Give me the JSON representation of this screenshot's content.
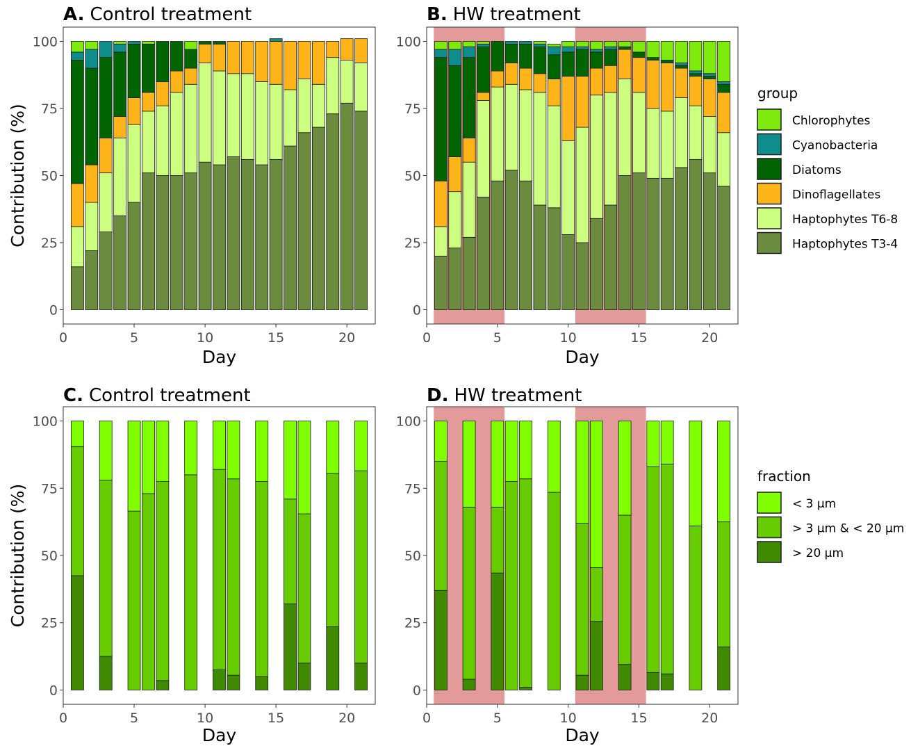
{
  "colors": {
    "chlorophytes": "#7fea0e",
    "cyanobacteria": "#0f8d8d",
    "diatoms": "#006400",
    "dinoflagellates": "#ffb519",
    "haptophytes_t68": "#ccff80",
    "haptophytes_t34": "#6b8b3f",
    "frac_lt3": "#80ff00",
    "frac_3_20": "#66cc00",
    "frac_gt20": "#3f8a00",
    "heatwave_shade": "#e29a9a"
  },
  "legends": {
    "group": {
      "title": "group",
      "items": [
        {
          "label": "Chlorophytes",
          "color": "#7fea0e"
        },
        {
          "label": "Cyanobacteria",
          "color": "#0f8d8d"
        },
        {
          "label": "Diatoms",
          "color": "#006400"
        },
        {
          "label": "Dinoflagellates",
          "color": "#ffb519"
        },
        {
          "label": "Haptophytes T6-8",
          "color": "#ccff80"
        },
        {
          "label": "Haptophytes T3-4",
          "color": "#6b8b3f"
        }
      ]
    },
    "fraction": {
      "title": "fraction",
      "items": [
        {
          "label": "< 3 µm",
          "color": "#80ff00"
        },
        {
          "label": "> 3 µm & < 20 µm",
          "color": "#66cc00"
        },
        {
          "label": "> 20 µm",
          "color": "#3f8a00"
        }
      ]
    }
  },
  "chart_data": [
    {
      "type": "bar",
      "stacked": true,
      "panel_letter": "A.",
      "title": "Control treatment",
      "xlabel": "Day",
      "ylabel": "Contribution (%)",
      "xlim": [
        0,
        22
      ],
      "ylim": [
        0,
        100
      ],
      "x_ticks": [
        0,
        5,
        10,
        15,
        20
      ],
      "y_ticks": [
        0,
        25,
        50,
        75,
        100
      ],
      "x": [
        1,
        2,
        3,
        4,
        5,
        6,
        7,
        8,
        9,
        10,
        11,
        12,
        13,
        14,
        15,
        16,
        17,
        18,
        19,
        20,
        21
      ],
      "shaded_periods": [],
      "series": [
        {
          "name": "Haptophytes T3-4",
          "color": "#6b8b3f",
          "values": [
            16,
            22,
            29,
            35,
            40,
            51,
            50,
            50,
            51,
            55,
            54,
            57,
            56,
            54,
            56,
            61,
            66,
            68,
            73,
            77,
            74
          ]
        },
        {
          "name": "Haptophytes T6-8",
          "color": "#ccff80",
          "values": [
            15,
            18,
            22,
            29,
            29,
            23,
            26,
            31,
            33,
            37,
            35,
            31,
            32,
            31,
            28,
            21,
            20,
            16,
            21,
            16,
            18
          ]
        },
        {
          "name": "Dinoflagellates",
          "color": "#ffb519",
          "values": [
            16,
            14,
            13,
            8,
            10,
            7,
            9,
            8,
            6,
            7,
            10,
            12,
            12,
            15,
            16,
            18,
            14,
            16,
            6,
            8,
            9
          ]
        },
        {
          "name": "Diatoms",
          "color": "#006400",
          "values": [
            46,
            36,
            30,
            24,
            20,
            18,
            15,
            11,
            7,
            1,
            1,
            0,
            0,
            0,
            0,
            0,
            0,
            0,
            0,
            0,
            0
          ]
        },
        {
          "name": "Cyanobacteria",
          "color": "#0f8d8d",
          "values": [
            3,
            7,
            6,
            3,
            1,
            0,
            0,
            0,
            0,
            0,
            0,
            0,
            0,
            0,
            1,
            0,
            0,
            0,
            0,
            0,
            0
          ]
        },
        {
          "name": "Chlorophytes",
          "color": "#7fea0e",
          "values": [
            4,
            3,
            0,
            1,
            0,
            1,
            0,
            0,
            3,
            0,
            0,
            0,
            0,
            0,
            0,
            0,
            0,
            0,
            0,
            0,
            0
          ]
        }
      ]
    },
    {
      "type": "bar",
      "stacked": true,
      "panel_letter": "B.",
      "title": "HW treatment",
      "xlabel": "Day",
      "ylabel": "",
      "xlim": [
        0,
        22
      ],
      "ylim": [
        0,
        100
      ],
      "x_ticks": [
        0,
        5,
        10,
        15,
        20
      ],
      "y_ticks": [
        0,
        25,
        50,
        75,
        100
      ],
      "x": [
        1,
        2,
        3,
        4,
        5,
        6,
        7,
        8,
        9,
        10,
        11,
        12,
        13,
        14,
        15,
        16,
        17,
        18,
        19,
        20,
        21
      ],
      "shaded_periods": [
        [
          0.5,
          5.5
        ],
        [
          10.5,
          15.5
        ]
      ],
      "series": [
        {
          "name": "Haptophytes T3-4",
          "color": "#6b8b3f",
          "values": [
            20,
            23,
            27,
            42,
            48,
            52,
            48,
            39,
            38,
            28,
            25,
            34,
            39,
            50,
            51,
            49,
            49,
            53,
            56,
            51,
            46
          ]
        },
        {
          "name": "Haptophytes T6-8",
          "color": "#ccff80",
          "values": [
            11,
            21,
            28,
            36,
            35,
            32,
            34,
            42,
            38,
            35,
            43,
            46,
            42,
            36,
            30,
            26,
            25,
            26,
            20,
            21,
            20
          ]
        },
        {
          "name": "Dinoflagellates",
          "color": "#ffb519",
          "values": [
            17,
            13,
            9,
            3,
            6,
            8,
            8,
            7,
            10,
            24,
            19,
            10,
            10,
            11,
            13,
            18,
            18,
            11,
            11,
            14,
            15
          ]
        },
        {
          "name": "Diatoms",
          "color": "#006400",
          "values": [
            46,
            34,
            30,
            17,
            11,
            7,
            9,
            10,
            9,
            9,
            10,
            6,
            6,
            1,
            2,
            1,
            1,
            1,
            1,
            1,
            3
          ]
        },
        {
          "name": "Cyanobacteria",
          "color": "#0f8d8d",
          "values": [
            3,
            6,
            4,
            1,
            0,
            1,
            1,
            1,
            3,
            2,
            1,
            1,
            1,
            0,
            0,
            0,
            0,
            1,
            1,
            1,
            1
          ]
        },
        {
          "name": "Chlorophytes",
          "color": "#7fea0e",
          "values": [
            3,
            3,
            2,
            1,
            0,
            0,
            0,
            1,
            1,
            2,
            2,
            3,
            2,
            2,
            4,
            6,
            7,
            8,
            11,
            12,
            15
          ]
        }
      ]
    },
    {
      "type": "bar",
      "stacked": true,
      "panel_letter": "C.",
      "title": "Control treatment",
      "xlabel": "Day",
      "ylabel": "Contribution (%)",
      "xlim": [
        0,
        22
      ],
      "ylim": [
        0,
        100
      ],
      "x_ticks": [
        0,
        5,
        10,
        15,
        20
      ],
      "y_ticks": [
        0,
        25,
        50,
        75,
        100
      ],
      "x": [
        1,
        3,
        5,
        6,
        7,
        9,
        11,
        12,
        14,
        16,
        17,
        19,
        21
      ],
      "shaded_periods": [],
      "series": [
        {
          "name": "> 20 µm",
          "color": "#3f8a00",
          "values": [
            42.5,
            12.5,
            0,
            0,
            3.5,
            0,
            7.5,
            5.5,
            5,
            32,
            10,
            23.5,
            10
          ]
        },
        {
          "name": "> 3 µm & < 20 µm",
          "color": "#66cc00",
          "values": [
            48,
            65.5,
            66.5,
            73,
            74,
            80,
            74.5,
            73,
            72.5,
            39,
            55.5,
            57,
            71.5
          ]
        },
        {
          "name": "< 3 µm",
          "color": "#80ff00",
          "values": [
            9.5,
            22,
            33.5,
            27,
            22.5,
            20,
            18,
            21.5,
            22.5,
            29,
            34.5,
            19.5,
            18.5
          ]
        }
      ]
    },
    {
      "type": "bar",
      "stacked": true,
      "panel_letter": "D.",
      "title": "HW treatment",
      "xlabel": "Day",
      "ylabel": "",
      "xlim": [
        0,
        22
      ],
      "ylim": [
        0,
        100
      ],
      "x_ticks": [
        0,
        5,
        10,
        15,
        20
      ],
      "y_ticks": [
        0,
        25,
        50,
        75,
        100
      ],
      "x": [
        1,
        3,
        5,
        6,
        7,
        9,
        11,
        12,
        14,
        16,
        17,
        19,
        21
      ],
      "shaded_periods": [
        [
          0.5,
          5.5
        ],
        [
          10.5,
          15.5
        ]
      ],
      "series": [
        {
          "name": "> 20 µm",
          "color": "#3f8a00",
          "values": [
            37,
            4,
            43.5,
            0,
            1,
            0,
            5.5,
            25.5,
            9.5,
            6.5,
            6,
            0,
            16
          ]
        },
        {
          "name": "> 3 µm & < 20 µm",
          "color": "#66cc00",
          "values": [
            48,
            64,
            24.5,
            77.5,
            77.5,
            73.5,
            56.5,
            20,
            55.5,
            76.5,
            78,
            61,
            46.5
          ]
        },
        {
          "name": "< 3 µm",
          "color": "#80ff00",
          "values": [
            15,
            32,
            32,
            22.5,
            21.5,
            26.5,
            38,
            54.5,
            35,
            17,
            16,
            39,
            37.5
          ]
        }
      ]
    }
  ]
}
